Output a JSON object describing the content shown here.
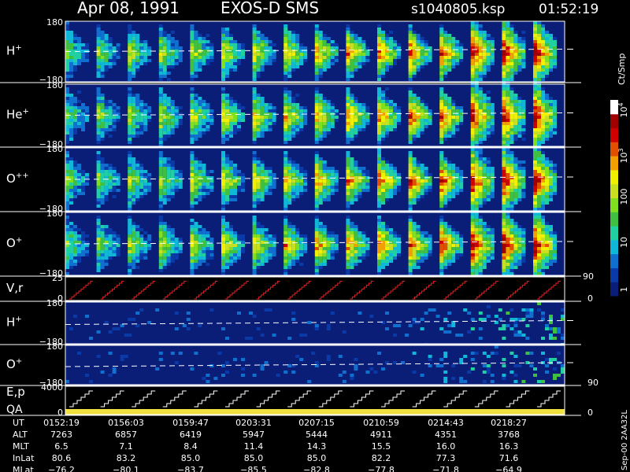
{
  "header": {
    "date": "Apr 08, 1991",
    "instrument": "EXOS-D SMS",
    "file": "s1040805.ksp",
    "time": "01:52:19"
  },
  "panels": [
    {
      "label": {
        "text": "H",
        "sup": "+"
      },
      "top": "180",
      "bottom": "−180"
    },
    {
      "label": {
        "text": "He",
        "sup": "+"
      },
      "top": "180",
      "bottom": "−180"
    },
    {
      "label": {
        "text": "O",
        "sup": "++"
      },
      "top": "180",
      "bottom": "−180"
    },
    {
      "label": {
        "text": "O",
        "sup": "+"
      },
      "top": "180",
      "bottom": "−180"
    },
    {
      "label": {
        "text": "V,r"
      },
      "top": "25",
      "bottom": "0",
      "right_top": "90",
      "right_bottom": "0"
    },
    {
      "label": {
        "text": "H",
        "sup": "+"
      },
      "top": "180",
      "bottom": "−180"
    },
    {
      "label": {
        "text": "O",
        "sup": "+"
      },
      "top": "180",
      "bottom": "−180",
      "right_bottom": "90"
    },
    {
      "label": {
        "text": "E,p"
      },
      "label2": "QA",
      "top": "4000",
      "bottom": "0",
      "right_bottom": "0"
    }
  ],
  "colorbar": {
    "units": "Ct/Smp",
    "ticks": [
      {
        "base": "10",
        "exp": "4"
      },
      {
        "base": "10",
        "exp": "3"
      },
      {
        "base": "100"
      },
      {
        "base": "10"
      },
      {
        "base": "1"
      }
    ]
  },
  "table": {
    "rows": [
      [
        "UT",
        "0152:19",
        "0156:03",
        "0159:47",
        "0203:31",
        "0207:15",
        "0210:59",
        "0214:43",
        "0218:27"
      ],
      [
        "ALT",
        "7263",
        "6857",
        "6419",
        "5947",
        "5444",
        "4911",
        "4351",
        "3768"
      ],
      [
        "MLT",
        "6.5",
        "7.1",
        "8.4",
        "11.4",
        "14.3",
        "15.5",
        "16.0",
        "16.3"
      ],
      [
        "InLat",
        "80.6",
        "83.2",
        "85.0",
        "85.0",
        "85.0",
        "82.2",
        "77.3",
        "71.6"
      ],
      [
        "MLat",
        "−76.2",
        "−80.1",
        "−83.7",
        "−85.5",
        "−82.8",
        "−77.8",
        "−71.8",
        "−64.9"
      ]
    ]
  },
  "footer": "Sep-00 2AA32L"
}
